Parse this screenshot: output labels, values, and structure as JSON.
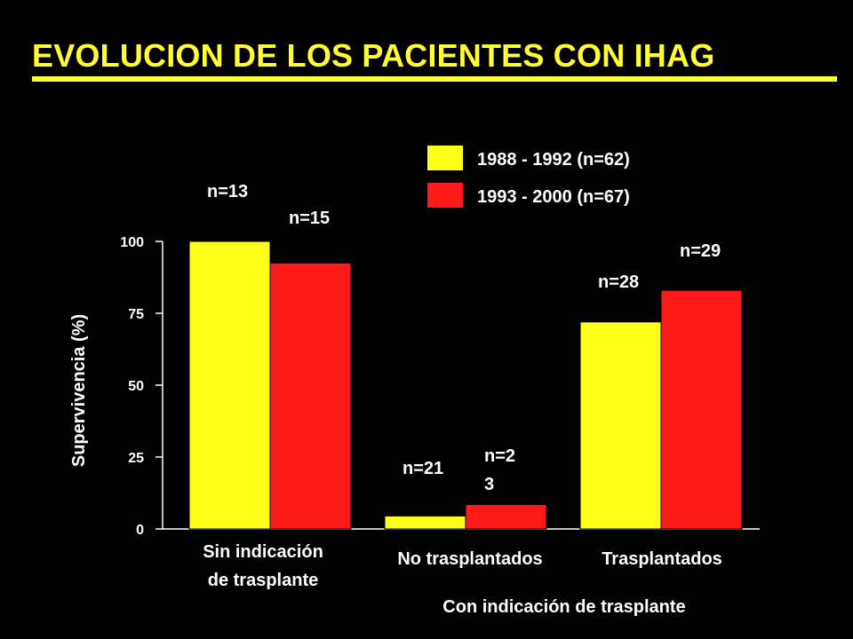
{
  "title": "EVOLUCION DE LOS PACIENTES CON IHAG",
  "colors": {
    "background": "#000000",
    "title": "#FFFF33",
    "series_1": "#FFFF1A",
    "series_2": "#FF1A1A",
    "text": "#FFFFFF"
  },
  "chart_data": {
    "type": "bar",
    "ylabel": "Supervivencia (%)",
    "ylim": [
      0,
      100
    ],
    "yticks": [
      "0",
      "25",
      "50",
      "75",
      "100"
    ],
    "categories": [
      "Sin indicación de trasplante",
      "No trasplantados",
      "Trasplantados"
    ],
    "category_lines": [
      [
        "Sin indicación",
        "de trasplante"
      ],
      [
        "No trasplantados"
      ],
      [
        "Trasplantados"
      ]
    ],
    "group_label": "Con indicación de trasplante",
    "legend_position": "top-right",
    "series": [
      {
        "name": "1988 - 1992 (n=62)",
        "values": [
          100,
          4.5,
          72
        ],
        "bar_labels": [
          [
            "n=13"
          ],
          [
            "n=21"
          ],
          [
            "n=28"
          ]
        ]
      },
      {
        "name": "1993 - 2000 (n=67)",
        "values": [
          92.5,
          8.5,
          83
        ],
        "bar_labels": [
          [
            "n=15"
          ],
          [
            "n=2",
            "3"
          ],
          [
            "n=29"
          ]
        ]
      }
    ]
  }
}
